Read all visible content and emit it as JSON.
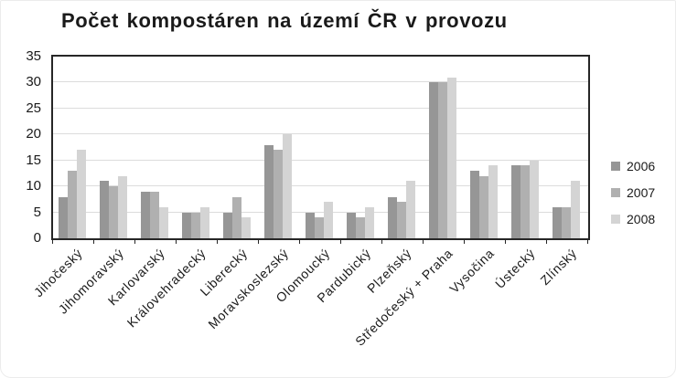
{
  "chart_data": {
    "type": "bar",
    "title": "Počet kompostáren na území ČR v provozu",
    "categories": [
      "Jihočeský",
      "Jihomoravský",
      "Karlovarský",
      "Královehradecký",
      "Liberecký",
      "Moravskoslezský",
      "Olomoucký",
      "Pardubický",
      "Plzeňský",
      "Středočeský + Praha",
      "Vysočina",
      "Ústecký",
      "Zlínský"
    ],
    "series": [
      {
        "name": "2006",
        "color": "#969696",
        "values": [
          8,
          11,
          9,
          5,
          5,
          18,
          5,
          5,
          8,
          30,
          13,
          14,
          6
        ]
      },
      {
        "name": "2007",
        "color": "#b0b0b0",
        "values": [
          13,
          10,
          9,
          5,
          8,
          17,
          4,
          4,
          7,
          30,
          12,
          14,
          6
        ]
      },
      {
        "name": "2008",
        "color": "#d4d4d4",
        "values": [
          17,
          12,
          6,
          6,
          4,
          20,
          7,
          6,
          11,
          31,
          14,
          15,
          11
        ]
      }
    ],
    "xlabel": "",
    "ylabel": "",
    "ylim": [
      0,
      35
    ],
    "ytick_step": 5,
    "grid": true,
    "legend_position": "right"
  },
  "colors": {
    "axis_frame": "#262626",
    "gridline": "#dcdcdc",
    "text": "#1a1a1a"
  }
}
